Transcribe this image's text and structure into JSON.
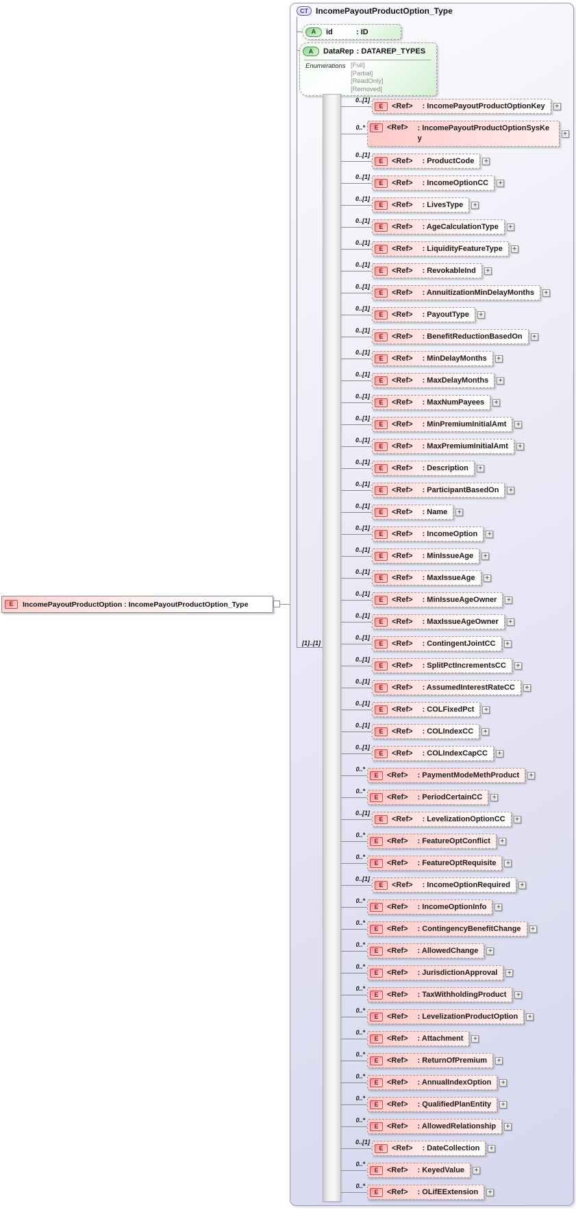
{
  "colors": {
    "container_fill": "#e6e6f5",
    "container_border": "#9898b4",
    "element_box_fill": "#ffd2d2",
    "attribute_box_fill": "#d9f2d9",
    "element_badge_border": "#b05050",
    "attribute_badge_border": "#4e8f4e",
    "connector_line": "#8a8a8a"
  },
  "icons": {
    "sequence": "sequence-icon",
    "expand_glyph": "+"
  },
  "root_element": {
    "badge": "E",
    "label": "IncomePayoutProductOption : IncomePayoutProductOption_Type"
  },
  "complex_type": {
    "badge": "CT",
    "title": "IncomePayoutProductOption_Type",
    "attributes": [
      {
        "badge": "A",
        "name": "id",
        "type": ": ID"
      },
      {
        "badge": "A",
        "name": "DataRep",
        "type": ": DATAREP_TYPES",
        "enumerations_label": "Enumerations",
        "enumerations": [
          "[Full]",
          "[Partial]",
          "[ReadOnly]",
          "[Removed]"
        ]
      }
    ],
    "sequence": {
      "cardinality": "[1]..[1]"
    },
    "ref_label": "<Ref>",
    "name_separator": ": ",
    "element_badge": "E",
    "elements": [
      {
        "cardinality": "0..[1]",
        "name": "IncomePayoutProductOptionKey"
      },
      {
        "cardinality": "0..*",
        "name": "IncomePayoutProductOptionSysKey"
      },
      {
        "cardinality": "0..[1]",
        "name": "ProductCode"
      },
      {
        "cardinality": "0..[1]",
        "name": "IncomeOptionCC"
      },
      {
        "cardinality": "0..[1]",
        "name": "LivesType"
      },
      {
        "cardinality": "0..[1]",
        "name": "AgeCalculationType"
      },
      {
        "cardinality": "0..[1]",
        "name": "LiquidityFeatureType"
      },
      {
        "cardinality": "0..[1]",
        "name": "RevokableInd"
      },
      {
        "cardinality": "0..[1]",
        "name": "AnnuitizationMinDelayMonths"
      },
      {
        "cardinality": "0..[1]",
        "name": "PayoutType"
      },
      {
        "cardinality": "0..[1]",
        "name": "BenefitReductionBasedOn"
      },
      {
        "cardinality": "0..[1]",
        "name": "MinDelayMonths"
      },
      {
        "cardinality": "0..[1]",
        "name": "MaxDelayMonths"
      },
      {
        "cardinality": "0..[1]",
        "name": "MaxNumPayees"
      },
      {
        "cardinality": "0..[1]",
        "name": "MinPremiumInitialAmt"
      },
      {
        "cardinality": "0..[1]",
        "name": "MaxPremiumInitialAmt"
      },
      {
        "cardinality": "0..[1]",
        "name": "Description"
      },
      {
        "cardinality": "0..[1]",
        "name": "ParticipantBasedOn"
      },
      {
        "cardinality": "0..[1]",
        "name": "Name"
      },
      {
        "cardinality": "0..[1]",
        "name": "IncomeOption"
      },
      {
        "cardinality": "0..[1]",
        "name": "MinIssueAge"
      },
      {
        "cardinality": "0..[1]",
        "name": "MaxIssueAge"
      },
      {
        "cardinality": "0..[1]",
        "name": "MinIssueAgeOwner"
      },
      {
        "cardinality": "0..[1]",
        "name": "MaxIssueAgeOwner"
      },
      {
        "cardinality": "0..[1]",
        "name": "ContingentJointCC"
      },
      {
        "cardinality": "0..[1]",
        "name": "SplitPctIncrementsCC"
      },
      {
        "cardinality": "0..[1]",
        "name": "AssumedInterestRateCC"
      },
      {
        "cardinality": "0..[1]",
        "name": "COLFixedPct"
      },
      {
        "cardinality": "0..[1]",
        "name": "COLIndexCC"
      },
      {
        "cardinality": "0..[1]",
        "name": "COLIndexCapCC"
      },
      {
        "cardinality": "0..*",
        "name": "PaymentModeMethProduct"
      },
      {
        "cardinality": "0..*",
        "name": "PeriodCertainCC"
      },
      {
        "cardinality": "0..[1]",
        "name": "LevelizationOptionCC"
      },
      {
        "cardinality": "0..*",
        "name": "FeatureOptConflict"
      },
      {
        "cardinality": "0..*",
        "name": "FeatureOptRequisite"
      },
      {
        "cardinality": "0..[1]",
        "name": "IncomeOptionRequired"
      },
      {
        "cardinality": "0..*",
        "name": "IncomeOptionInfo"
      },
      {
        "cardinality": "0..*",
        "name": "ContingencyBenefitChange"
      },
      {
        "cardinality": "0..*",
        "name": "AllowedChange"
      },
      {
        "cardinality": "0..*",
        "name": "JurisdictionApproval"
      },
      {
        "cardinality": "0..*",
        "name": "TaxWithholdingProduct"
      },
      {
        "cardinality": "0..*",
        "name": "LevelizationProductOption"
      },
      {
        "cardinality": "0..*",
        "name": "Attachment"
      },
      {
        "cardinality": "0..*",
        "name": "ReturnOfPremium"
      },
      {
        "cardinality": "0..*",
        "name": "AnnualIndexOption"
      },
      {
        "cardinality": "0..*",
        "name": "QualifiedPlanEntity"
      },
      {
        "cardinality": "0..*",
        "name": "AllowedRelationship"
      },
      {
        "cardinality": "0..[1]",
        "name": "DateCollection"
      },
      {
        "cardinality": "0..*",
        "name": "KeyedValue"
      },
      {
        "cardinality": "0..*",
        "name": "OLifEExtension"
      }
    ]
  }
}
